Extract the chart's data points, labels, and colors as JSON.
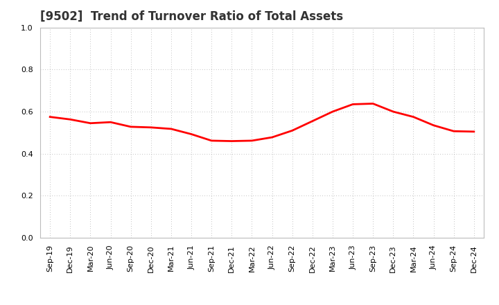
{
  "title": "[9502]  Trend of Turnover Ratio of Total Assets",
  "x_labels": [
    "Sep-19",
    "Dec-19",
    "Mar-20",
    "Jun-20",
    "Sep-20",
    "Dec-20",
    "Mar-21",
    "Jun-21",
    "Sep-21",
    "Dec-21",
    "Mar-22",
    "Jun-22",
    "Sep-22",
    "Dec-22",
    "Mar-23",
    "Jun-23",
    "Sep-23",
    "Dec-23",
    "Mar-24",
    "Jun-24",
    "Sep-24",
    "Dec-24"
  ],
  "y_values": [
    0.575,
    0.563,
    0.545,
    0.55,
    0.528,
    0.525,
    0.518,
    0.493,
    0.462,
    0.46,
    0.462,
    0.478,
    0.51,
    0.555,
    0.6,
    0.635,
    0.638,
    0.6,
    0.575,
    0.535,
    0.507,
    0.505
  ],
  "ylim": [
    0.0,
    1.0
  ],
  "yticks": [
    0.0,
    0.2,
    0.4,
    0.6,
    0.8,
    1.0
  ],
  "line_color": "#ff0000",
  "line_width": 2.0,
  "bg_color": "#ffffff",
  "grid_color": "#aaaaaa",
  "title_fontsize": 12,
  "title_color": "#333333",
  "tick_fontsize": 8,
  "spine_color": "#bbbbbb"
}
